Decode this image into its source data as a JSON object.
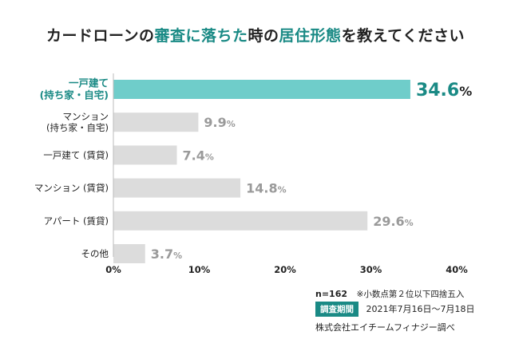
{
  "title": {
    "parts": [
      {
        "text": "カードローンの",
        "color": "#222222"
      },
      {
        "text": "審査に落ちた",
        "color": "#1a8a85"
      },
      {
        "text": "時の",
        "color": "#222222"
      },
      {
        "text": "居住形態",
        "color": "#1a8a85"
      },
      {
        "text": "を教えてください",
        "color": "#222222"
      }
    ]
  },
  "chart_data": {
    "type": "bar",
    "orientation": "horizontal",
    "categories": [
      [
        "一戸建て",
        "(持ち家・自宅)"
      ],
      [
        "マンション",
        "(持ち家・自宅)"
      ],
      [
        "一戸建て (賃貸)"
      ],
      [
        "マンション (賃貸)"
      ],
      [
        "アパート (賃貸)"
      ],
      [
        "その他"
      ]
    ],
    "values": [
      34.6,
      9.9,
      7.4,
      14.8,
      29.6,
      3.7
    ],
    "value_labels": [
      "34.6",
      "9.9",
      "7.4",
      "14.8",
      "29.6",
      "3.7"
    ],
    "value_suffix": "%",
    "highlight_index": 0,
    "xlim": [
      0,
      40
    ],
    "x_ticks": [
      "0%",
      "10%",
      "20%",
      "30%",
      "40%"
    ],
    "grid": false,
    "colors": {
      "highlight": "#6fcdca",
      "highlight_text": "#1a8a85",
      "highlight_value": "#1a8a85",
      "bar": "#dcdcdc",
      "value": "#9a9a9a",
      "label": "#222222"
    }
  },
  "notes": {
    "n": "n=162",
    "rounding": "※小数点第２位以下四捨五入",
    "period_badge": "調査期間",
    "period": "2021年7月16日～7月18日",
    "company": "株式会社エイチームフィナジー調べ"
  }
}
